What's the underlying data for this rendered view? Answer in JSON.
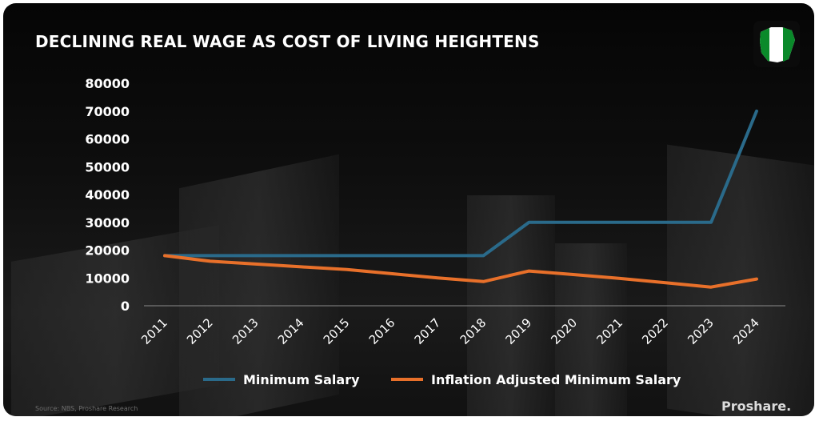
{
  "title": "DECLINING REAL WAGE AS COST OF LIVING HEIGHTENS",
  "source": "Source: NBS, Proshare Research",
  "brand": "Proshare.",
  "icons": {
    "flag": "nigeria-map-icon"
  },
  "colors": {
    "minimum_salary": "#2a6a8a",
    "inflation_adjusted": "#e8702a",
    "flag_green": "#0a8a2a"
  },
  "chart_data": {
    "type": "line",
    "title": "DECLINING REAL WAGE AS COST OF LIVING HEIGHTENS",
    "categories": [
      "2011",
      "2012",
      "2013",
      "2014",
      "2015",
      "2016",
      "2017",
      "2018",
      "2019",
      "2020",
      "2021",
      "2022",
      "2023",
      "2024"
    ],
    "series": [
      {
        "name": "Minimum Salary",
        "values": [
          18000,
          18000,
          18000,
          18000,
          18000,
          18000,
          18000,
          18000,
          30000,
          30000,
          30000,
          30000,
          30000,
          70000
        ]
      },
      {
        "name": "Inflation Adjusted Minimum Salary",
        "values": [
          18000,
          16000,
          15000,
          14000,
          13000,
          11500,
          10000,
          8700,
          12500,
          11200,
          9800,
          8300,
          6700,
          9600
        ]
      }
    ],
    "y_ticks": [
      0,
      10000,
      20000,
      30000,
      40000,
      50000,
      60000,
      70000,
      80000
    ],
    "ylim": [
      0,
      80000
    ],
    "xlabel": "",
    "ylabel": "",
    "grid": false,
    "legend_position": "bottom"
  }
}
